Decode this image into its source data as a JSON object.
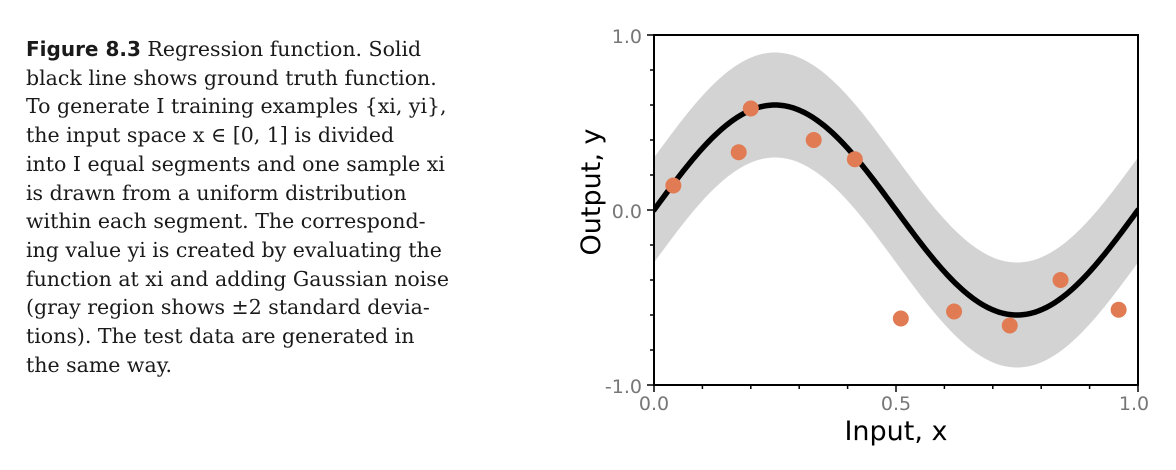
{
  "caption": {
    "label": "Figure 8.3",
    "lines": [
      " Regression function.   Solid",
      "black line shows ground truth function.",
      "To generate I training examples {xi, yi},",
      "the input space x ∈ [0, 1] is divided",
      "into I equal segments and one sample xi",
      "is drawn from a uniform distribution",
      "within each segment.  The correspond-",
      "ing value yi is created by evaluating the",
      "function at xi and adding Gaussian noise",
      "(gray region shows ±2 standard devia-",
      "tions).  The test data are generated in",
      "the same way."
    ]
  },
  "chart_data": {
    "type": "line",
    "xlabel": "Input, x",
    "ylabel": "Output, y",
    "xlim": [
      0.0,
      1.0
    ],
    "ylim": [
      -1.0,
      1.0
    ],
    "x_ticks": [
      "0.0",
      "0.5",
      "1.0"
    ],
    "y_ticks": [
      "1.0",
      "0.0",
      "-1.0"
    ],
    "grid": false,
    "legend": "none",
    "ground_truth": {
      "function": "y = 0.6 * sin(2*pi*x)",
      "color": "#000000"
    },
    "noise_band": {
      "plus_minus": 0.3,
      "description": "±2 standard deviations",
      "color": "#d3d3d3"
    },
    "training_points": {
      "color": "#e07b54",
      "points": [
        {
          "x": 0.04,
          "y": 0.14
        },
        {
          "x": 0.175,
          "y": 0.33
        },
        {
          "x": 0.2,
          "y": 0.58
        },
        {
          "x": 0.33,
          "y": 0.4
        },
        {
          "x": 0.415,
          "y": 0.29
        },
        {
          "x": 0.51,
          "y": -0.62
        },
        {
          "x": 0.62,
          "y": -0.58
        },
        {
          "x": 0.735,
          "y": -0.66
        },
        {
          "x": 0.84,
          "y": -0.4
        },
        {
          "x": 0.96,
          "y": -0.57
        }
      ]
    }
  }
}
